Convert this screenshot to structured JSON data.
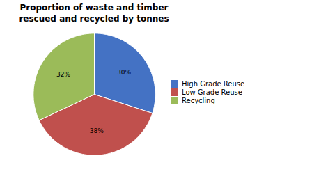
{
  "chart_data": {
    "type": "pie",
    "title": "Proportion of waste and timber\nrescued and recycled by tonnes",
    "categories": [
      "High Grade Reuse",
      "Low Grade Reuse",
      "Recycling"
    ],
    "values": [
      30,
      38,
      32
    ],
    "value_labels": [
      "30%",
      "38%",
      "32%"
    ],
    "colors": [
      "#4472C4",
      "#C0504D",
      "#9BBB59"
    ],
    "data_labels": true,
    "legend": "right"
  }
}
